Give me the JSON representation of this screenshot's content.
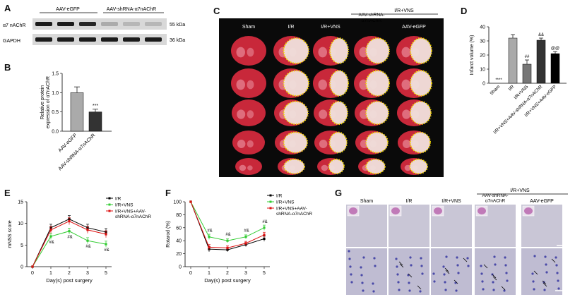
{
  "panels": {
    "A": {
      "label": "A",
      "groups": [
        "AAV-eGFP",
        "AAV-shRNA-α7nAChR"
      ],
      "rows": [
        {
          "name": "α7 nAChR",
          "kda": "55 kDa",
          "intensity": [
            0.95,
            0.95,
            0.9,
            0.35,
            0.3,
            0.3
          ]
        },
        {
          "name": "GAPDH",
          "kda": "36 kDa",
          "intensity": [
            0.95,
            0.95,
            0.95,
            0.95,
            0.95,
            0.95
          ]
        }
      ]
    },
    "B": {
      "label": "B",
      "sig": "***"
    },
    "C": {
      "label": "C",
      "bracket": "I/R+VNS",
      "columns": [
        "Sham",
        "I/R",
        "I/R+VNS",
        "AAV-shRNA-α7nAChR",
        "AAV-eGFP"
      ]
    },
    "D": {
      "label": "D",
      "sig": [
        "****",
        "",
        "##",
        "&&",
        "@@"
      ]
    },
    "E": {
      "label": "E",
      "legend": [
        "I/R",
        "I/R+VNS",
        "I/R+VNS+AAV-shRNA-α7nAChR"
      ],
      "sig": [
        "#&",
        "#&",
        "#&",
        "#&"
      ]
    },
    "F": {
      "label": "F",
      "legend": [
        "I/R",
        "I/R+VNS",
        "I/R+VNS+AAV-shRNA-α7nAChR"
      ],
      "sig": [
        "#&",
        "#&",
        "#&",
        "#&"
      ]
    },
    "G": {
      "label": "G",
      "bracket": "I/R+VNS",
      "columns": [
        "Sham",
        "I/R",
        "I/R+VNS",
        "AAV-shRNA-α7nAChR",
        "AAV-eGFP"
      ]
    }
  },
  "chart_data": [
    {
      "panel": "B",
      "type": "bar",
      "categories": [
        "AAV-eGFP",
        "AAV-shRNA-α7nAChR"
      ],
      "values": [
        1.0,
        0.5
      ],
      "errors": [
        0.15,
        0.07
      ],
      "colors": [
        "#aaaaaa",
        "#333333"
      ],
      "ylabel": "Relative protein expression of α7nAChR",
      "ylim": [
        0,
        1.5
      ],
      "yticks": [
        "0.0",
        "0.5",
        "1.0",
        "1.5"
      ]
    },
    {
      "panel": "D",
      "type": "bar",
      "categories": [
        "Sham",
        "I/R",
        "I/R+VNS",
        "I/R+VNS+AAV-shRNA-α7nAChR",
        "I/R+VNS+AAV-eGFP"
      ],
      "values": [
        0,
        32,
        13.5,
        30.5,
        21
      ],
      "errors": [
        0,
        2.5,
        3,
        1.5,
        1.5
      ],
      "colors": [
        "#ffffff",
        "#aaaaaa",
        "#777777",
        "#333333",
        "#000000"
      ],
      "ylabel": "Infarct volume (%)",
      "ylim": [
        0,
        40
      ],
      "yticks": [
        "0",
        "10",
        "20",
        "30",
        "40"
      ]
    },
    {
      "panel": "E",
      "type": "line",
      "x": [
        0,
        1,
        2,
        3,
        5
      ],
      "xticks": [
        "0",
        "1",
        "2",
        "3",
        "5"
      ],
      "xlabel": "Day(s) post surgery",
      "ylabel": "mNSS score",
      "ylim": [
        0,
        15
      ],
      "yticks": [
        "0",
        "5",
        "10",
        "15"
      ],
      "series": [
        {
          "name": "I/R",
          "color": "#000000",
          "values": [
            0,
            9,
            11,
            9,
            8
          ],
          "errors": [
            0,
            0.8,
            0.8,
            0.8,
            0.8
          ]
        },
        {
          "name": "I/R+VNS",
          "color": "#33cc33",
          "values": [
            0,
            7,
            8.2,
            6,
            5.2
          ],
          "errors": [
            0,
            0.7,
            0.7,
            0.7,
            0.7
          ]
        },
        {
          "name": "I/R+VNS+AAV-shRNA-α7nAChR",
          "color": "#dd1111",
          "values": [
            0,
            8.5,
            10.5,
            8.5,
            7.5
          ],
          "errors": [
            0,
            0.8,
            0.8,
            0.8,
            0.8
          ]
        }
      ]
    },
    {
      "panel": "F",
      "type": "line",
      "x": [
        0,
        1,
        2,
        3,
        5
      ],
      "xticks": [
        "0",
        "1",
        "2",
        "3",
        "5"
      ],
      "xlabel": "Day(s) post surgery",
      "ylabel": "Rotarod (%)",
      "ylim": [
        0,
        100
      ],
      "yticks": [
        "0",
        "20",
        "40",
        "60",
        "80",
        "100"
      ],
      "series": [
        {
          "name": "I/R",
          "color": "#000000",
          "values": [
            100,
            27,
            26,
            34,
            43
          ],
          "errors": [
            0,
            4,
            3,
            3,
            4
          ]
        },
        {
          "name": "I/R+VNS",
          "color": "#33cc33",
          "values": [
            100,
            46,
            40,
            46,
            60
          ],
          "errors": [
            0,
            4,
            3,
            3,
            4
          ]
        },
        {
          "name": "I/R+VNS+AAV-shRNA-α7nAChR",
          "color": "#dd1111",
          "values": [
            100,
            30,
            29,
            36,
            49
          ],
          "errors": [
            0,
            4,
            3,
            3,
            4
          ]
        }
      ]
    }
  ]
}
